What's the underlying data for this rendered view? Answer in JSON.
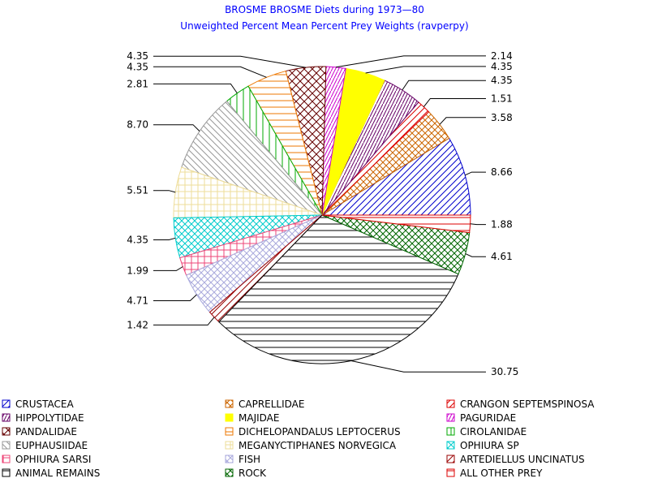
{
  "chart_data": {
    "type": "pie",
    "title": "BROSME BROSME Diets during 1973—80",
    "subtitle": "Unweighted Percent Mean Percent Prey  Weights (ravperpy)",
    "slices": [
      {
        "name": "CRUSTACEA",
        "value": 8.66,
        "label": "8.66",
        "color": "#0000cc",
        "pattern": "diag-up"
      },
      {
        "name": "CAPRELLIDAE",
        "value": 3.58,
        "label": "3.58",
        "color": "#cc6600",
        "pattern": "crosshatch-diag"
      },
      {
        "name": "CRANGON SEPTEMSPINOSA",
        "value": 1.51,
        "label": "1.51",
        "color": "#dd0000",
        "pattern": "diag-up"
      },
      {
        "name": "HIPPOLYTIDAE",
        "value": 4.35,
        "label": "4.35",
        "color": "#660066",
        "pattern": "diag-steep"
      },
      {
        "name": "MAJIDAE",
        "value": 4.35,
        "label": "4.35",
        "color": "#ffff00",
        "pattern": "solid"
      },
      {
        "name": "PAGURIDAE",
        "value": 2.14,
        "label": "2.14",
        "color": "#cc00cc",
        "pattern": "diag-steep"
      },
      {
        "name": "PANDALIDAE",
        "value": 4.35,
        "label": "4.35",
        "color": "#660000",
        "pattern": "crosshatch-diag-dense"
      },
      {
        "name": "DICHELOPANDALUS LEPTOCERUS",
        "value": 4.35,
        "label": "4.35",
        "color": "#ee7700",
        "pattern": "horizontal"
      },
      {
        "name": "CIROLANIDAE",
        "value": 2.81,
        "label": "2.81",
        "color": "#00aa00",
        "pattern": "vertical"
      },
      {
        "name": "EUPHAUSIIDAE",
        "value": 8.7,
        "label": "8.70",
        "color": "#999999",
        "pattern": "diag-down"
      },
      {
        "name": "MEGANYCTIPHANES NORVEGICA",
        "value": 5.51,
        "label": "5.51",
        "color": "#eedd99",
        "pattern": "grid"
      },
      {
        "name": "OPHIURA SP",
        "value": 4.35,
        "label": "4.35",
        "color": "#00cccc",
        "pattern": "crosshatch-diag"
      },
      {
        "name": "OPHIURA SARSI",
        "value": 1.99,
        "label": "1.99",
        "color": "#ee4477",
        "pattern": "grid"
      },
      {
        "name": "FISH",
        "value": 4.71,
        "label": "4.71",
        "color": "#aaaadd",
        "pattern": "crosshatch-diag"
      },
      {
        "name": "ARTEDIELLUS UNCINATUS",
        "value": 1.42,
        "label": "1.42",
        "color": "#990000",
        "pattern": "diag-up"
      },
      {
        "name": "ANIMAL REMAINS",
        "value": 30.75,
        "label": "30.75",
        "color": "#000000",
        "pattern": "horizontal"
      },
      {
        "name": "ROCK",
        "value": 4.61,
        "label": "4.61",
        "color": "#006600",
        "pattern": "crosshatch-diag"
      },
      {
        "name": "ALL OTHER PREY",
        "value": 1.88,
        "label": "1.88",
        "color": "#dd0000",
        "pattern": "horizontal"
      }
    ],
    "legend_order": [
      [
        "CRUSTACEA",
        "CAPRELLIDAE",
        "CRANGON SEPTEMSPINOSA"
      ],
      [
        "HIPPOLYTIDAE",
        "MAJIDAE",
        "PAGURIDAE"
      ],
      [
        "PANDALIDAE",
        "DICHELOPANDALUS LEPTOCERUS",
        "CIROLANIDAE"
      ],
      [
        "EUPHAUSIIDAE",
        "MEGANYCTIPHANES NORVEGICA",
        "OPHIURA SP"
      ],
      [
        "OPHIURA SARSI",
        "FISH",
        "ARTEDIELLUS UNCINATUS"
      ],
      [
        "ANIMAL REMAINS",
        "ROCK",
        "ALL OTHER PREY"
      ]
    ],
    "legend_position": "bottom",
    "start_direction": "east",
    "direction": "counterclockwise"
  }
}
